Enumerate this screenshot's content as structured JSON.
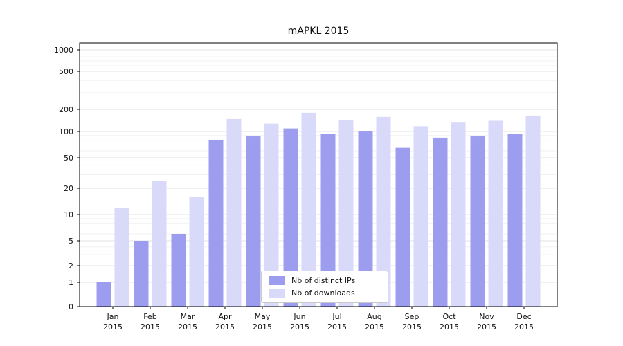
{
  "chart_data": {
    "type": "bar",
    "title": "mAPKL 2015",
    "categories": [
      "Jan 2015",
      "Feb 2015",
      "Mar 2015",
      "Apr 2015",
      "May 2015",
      "Jun 2015",
      "Jul 2015",
      "Aug 2015",
      "Sep 2015",
      "Oct 2015",
      "Nov 2015",
      "Dec 2015"
    ],
    "series": [
      {
        "name": "Nb of distinct IPs",
        "color": "#9d9df0",
        "values": [
          1,
          5,
          6,
          80,
          88,
          110,
          93,
          102,
          65,
          85,
          88,
          93
        ]
      },
      {
        "name": "Nb of downloads",
        "color": "#d9d9f9",
        "values": [
          12,
          25,
          16,
          148,
          128,
          180,
          142,
          158,
          118,
          132,
          140,
          165
        ]
      }
    ],
    "yticks": [
      0,
      1,
      2,
      5,
      10,
      20,
      50,
      100,
      200,
      500,
      1000
    ],
    "yscale": "symlog",
    "ylim": [
      0,
      1200
    ],
    "xlabel": "",
    "ylabel": "",
    "grid": "horizontal",
    "legend_position": "lower center"
  }
}
